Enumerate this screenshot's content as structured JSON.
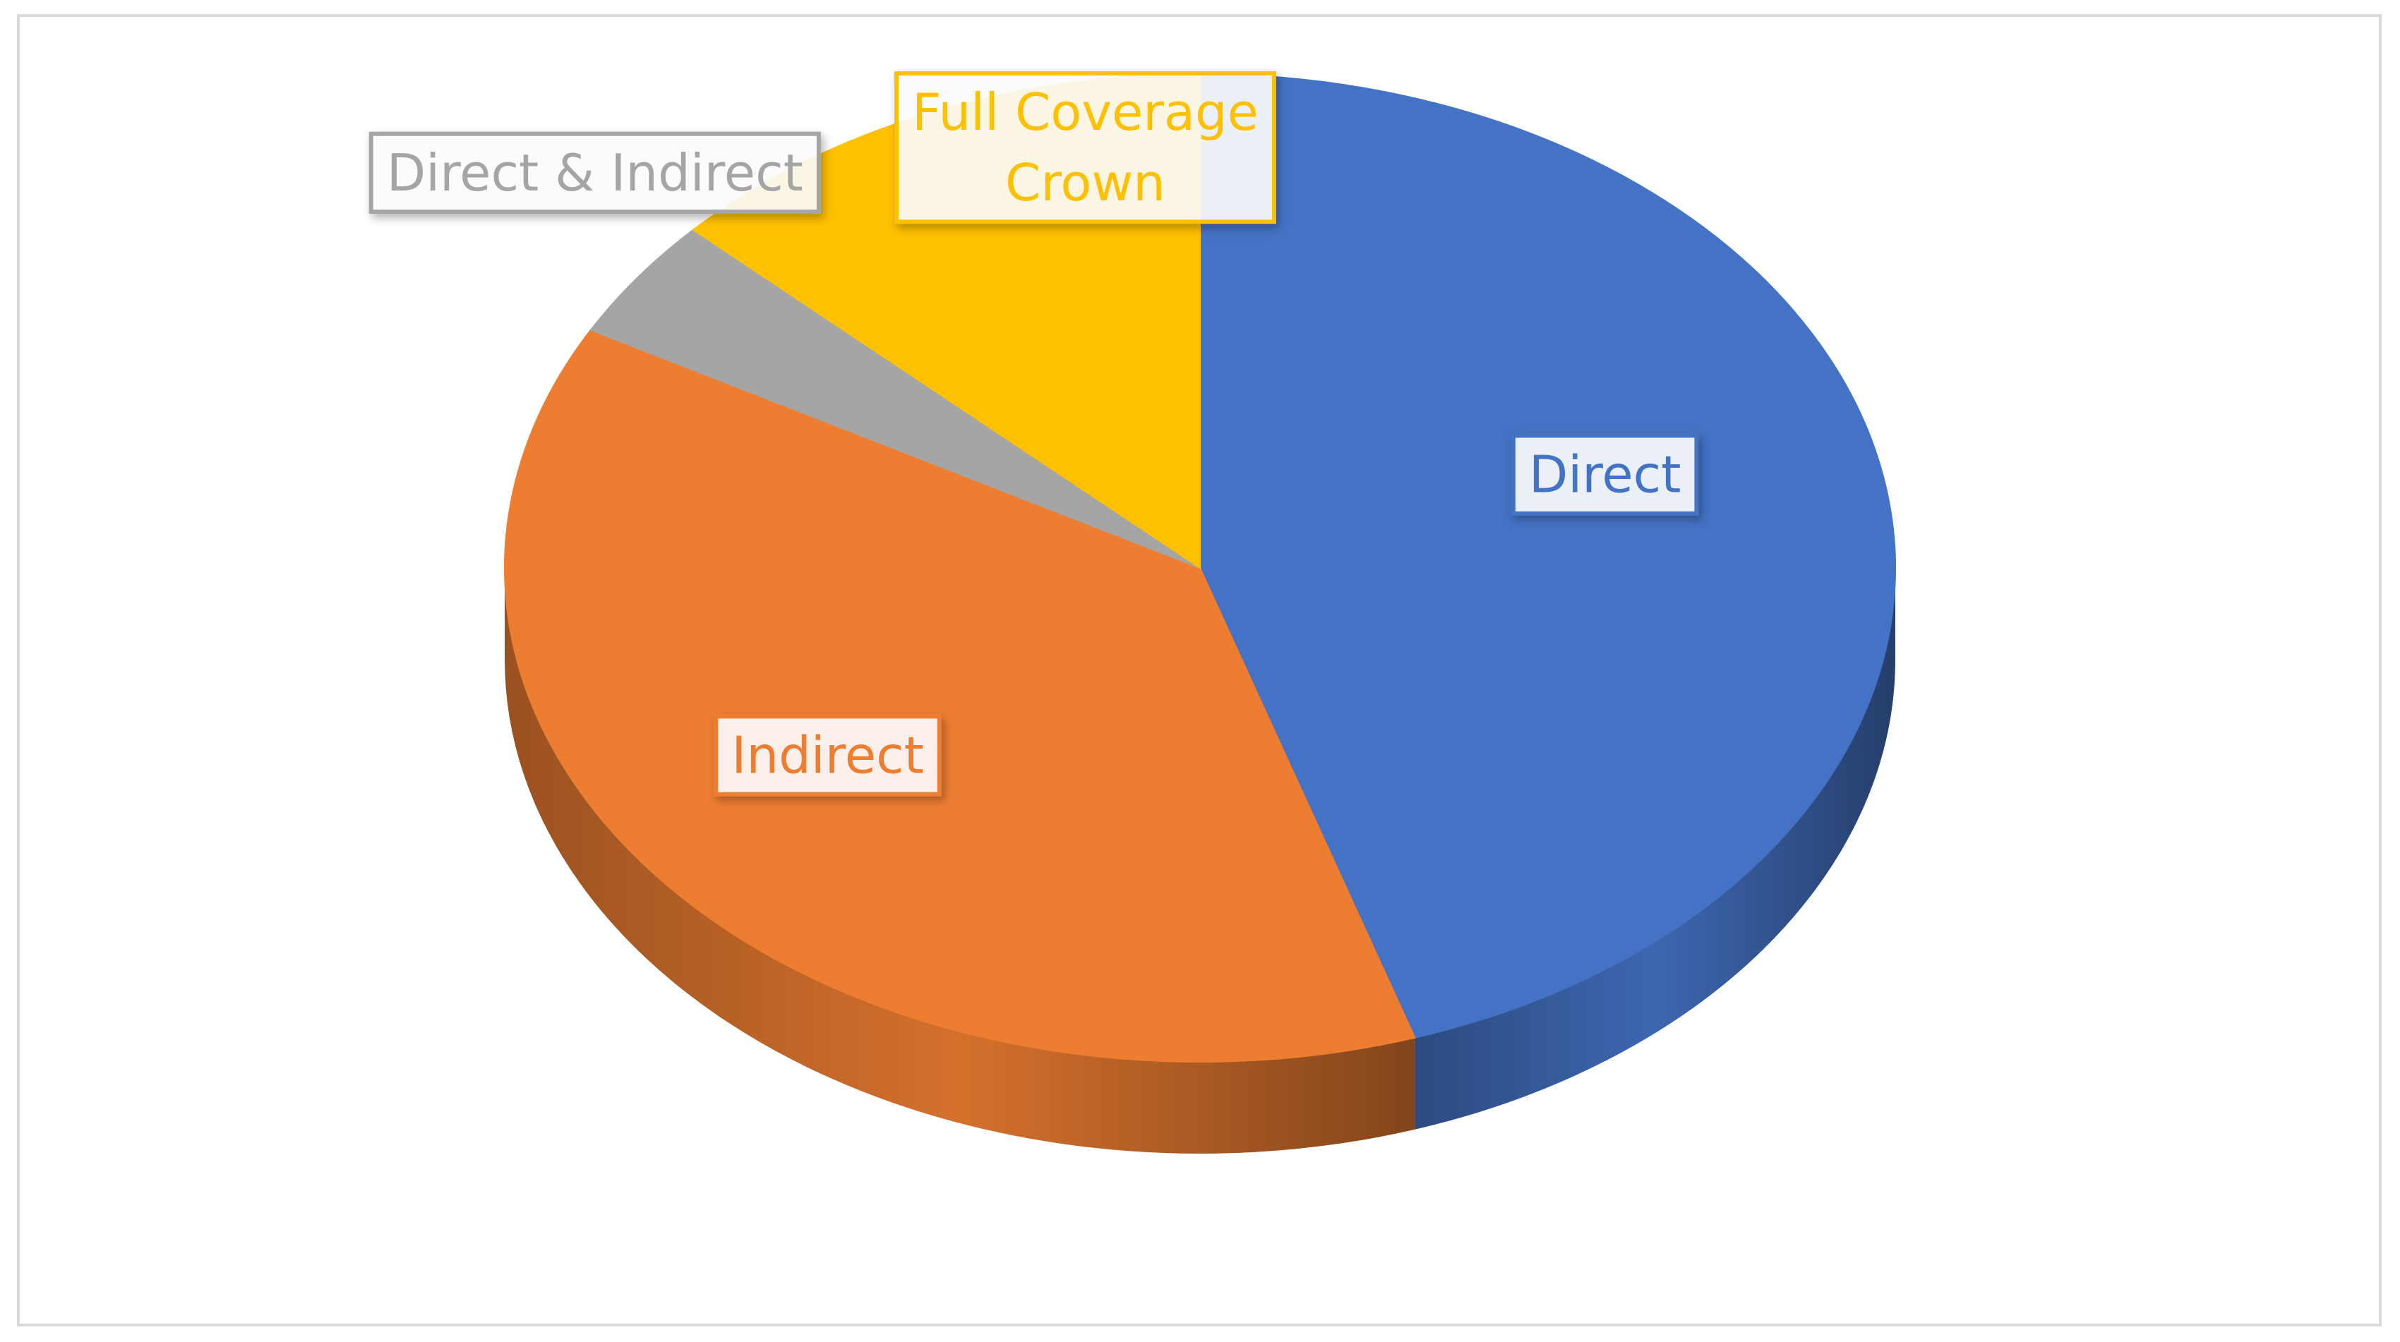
{
  "chart_data": {
    "type": "pie",
    "style": "3d",
    "title": "",
    "legend": "none",
    "slices": [
      {
        "label": "Direct",
        "value": 45,
        "color": "#4472C4"
      },
      {
        "label": "Indirect",
        "value": 38,
        "color": "#ED7D31"
      },
      {
        "label": "Direct & Indirect",
        "value": 4,
        "color": "#A5A5A5"
      },
      {
        "label": "Full Coverage Crown",
        "label_lines": [
          "Full Coverage",
          "Crown"
        ],
        "value": 13,
        "color": "#FFC000"
      }
    ]
  }
}
